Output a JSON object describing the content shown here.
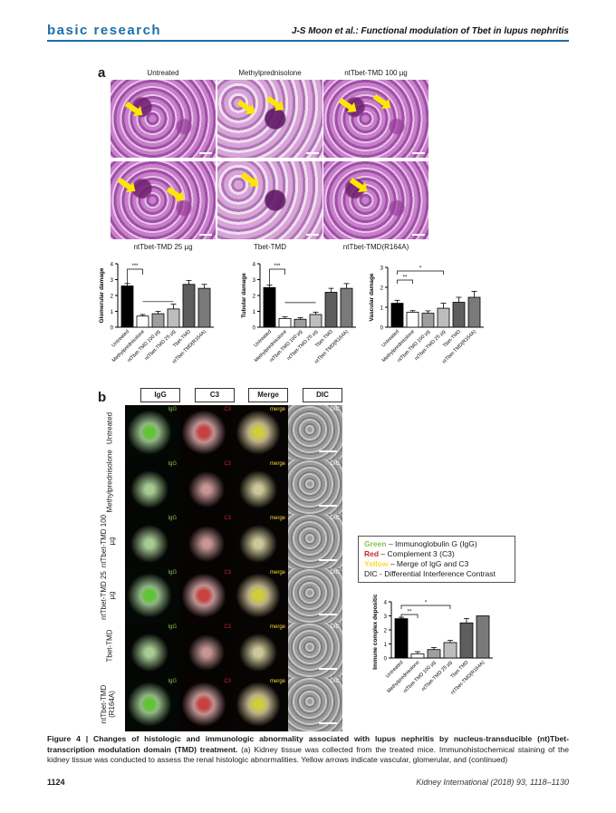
{
  "header": {
    "section": "basic research",
    "running_title": "J-S Moon et al.: Functional modulation of Tbet in lupus nephritis"
  },
  "colors": {
    "accent": "#1b6fa8",
    "arrow": "#ffe600",
    "green": "#8bc34a",
    "red": "#c62828",
    "yellow": "#fdd835"
  },
  "panel_a": {
    "letter": "a",
    "micrograph_captions": [
      "Untreated",
      "Methylprednisolone",
      "ntTbet-TMD  100 µg",
      "ntTbet-TMD  25 µg",
      "Tbet-TMD",
      "ntTbet-TMD(R164A)"
    ]
  },
  "panel_b": {
    "letter": "b",
    "column_headers": [
      "IgG",
      "C3",
      "Merge",
      "DIC"
    ],
    "cell_tags": [
      "IgG",
      "C3",
      "merge",
      "DIC"
    ],
    "row_labels": [
      "Untreated",
      "Methylprednisolone",
      "ntTbet-TMD 100 µg",
      "ntTbet-TMD 25 µg",
      "Tbet-TMD",
      "ntTbet-TMD (R164A)"
    ],
    "legend": [
      {
        "key": "Green",
        "text": " – Immunoglobulin G (IgG)"
      },
      {
        "key": "Red",
        "text": " – Complement 3 (C3)"
      },
      {
        "key": "Yellow",
        "text": " – Merge of IgG and C3"
      },
      {
        "key": "",
        "text": "DIC - Differential Interference Contrast"
      }
    ]
  },
  "chart_data": [
    {
      "type": "bar",
      "ylabel": "Glomerular damage",
      "ylim": [
        0,
        4
      ],
      "yticks": [
        0,
        1,
        2,
        3,
        4
      ],
      "categories": [
        "Untreated",
        "Methylprednisolone",
        "ntTbet-TMD 100 µg",
        "ntTbet-TMD 25 µg",
        "Tbet-TMD",
        "ntTbet-TMD(R164A)"
      ],
      "values": [
        2.6,
        0.7,
        0.85,
        1.15,
        2.7,
        2.45
      ],
      "errors": [
        0.15,
        0.1,
        0.15,
        0.3,
        0.25,
        0.25
      ],
      "significance": "***"
    },
    {
      "type": "bar",
      "ylabel": "Tubular damage",
      "ylim": [
        0,
        4
      ],
      "yticks": [
        0,
        1,
        2,
        3,
        4
      ],
      "categories": [
        "Untreated",
        "Methylprednisolone",
        "ntTbet-TMD 100 µg",
        "ntTbet-TMD 25 µg",
        "Tbet-TMD",
        "ntTbet-TMD(R164A)"
      ],
      "values": [
        2.5,
        0.55,
        0.5,
        0.8,
        2.2,
        2.45
      ],
      "errors": [
        0.15,
        0.1,
        0.1,
        0.15,
        0.25,
        0.3
      ],
      "significance": "***"
    },
    {
      "type": "bar",
      "ylabel": "Vascular damage",
      "ylim": [
        0,
        3
      ],
      "yticks": [
        0,
        1,
        2,
        3
      ],
      "categories": [
        "Untreated",
        "Methylprednisolone",
        "ntTbet-TMD 100 µg",
        "ntTbet-TMD 25 µg",
        "Tbet-TMD",
        "ntTbet-TMD(R164A)"
      ],
      "values": [
        1.2,
        0.75,
        0.7,
        0.95,
        1.25,
        1.5
      ],
      "errors": [
        0.15,
        0.08,
        0.12,
        0.25,
        0.25,
        0.3
      ],
      "significance": [
        "**",
        "*"
      ]
    },
    {
      "type": "bar",
      "ylabel": "Immune complex deposition",
      "ylim": [
        0,
        4
      ],
      "yticks": [
        0,
        1,
        2,
        3,
        4
      ],
      "categories": [
        "Untreated",
        "Methylprednisolone",
        "ntTbet-TMD 100 µg",
        "ntTbet-TMD 25 µg",
        "Tbet-TMD",
        "ntTbet-TMD(R164A)"
      ],
      "values": [
        2.8,
        0.3,
        0.6,
        1.1,
        2.5,
        3.0
      ],
      "errors": [
        0.1,
        0.15,
        0.15,
        0.15,
        0.3,
        0.0
      ],
      "significance": [
        "**",
        "*"
      ]
    }
  ],
  "caption": {
    "lead": "Figure 4 | Changes of histologic and immunologic abnormality associated with lupus nephritis by nucleus-transducible (nt)Tbet-transcription modulation domain (TMD) treatment.",
    "body": " (a) Kidney tissue was collected from the treated mice. Immunohistochemical staining of the kidney tissue was conducted to assess the renal histologic abnormalities. Yellow arrows indicate vascular, glomerular, and (continued)"
  },
  "footer": {
    "page_number": "1124",
    "journal": "Kidney International (2018) 93, 1118–1130"
  }
}
